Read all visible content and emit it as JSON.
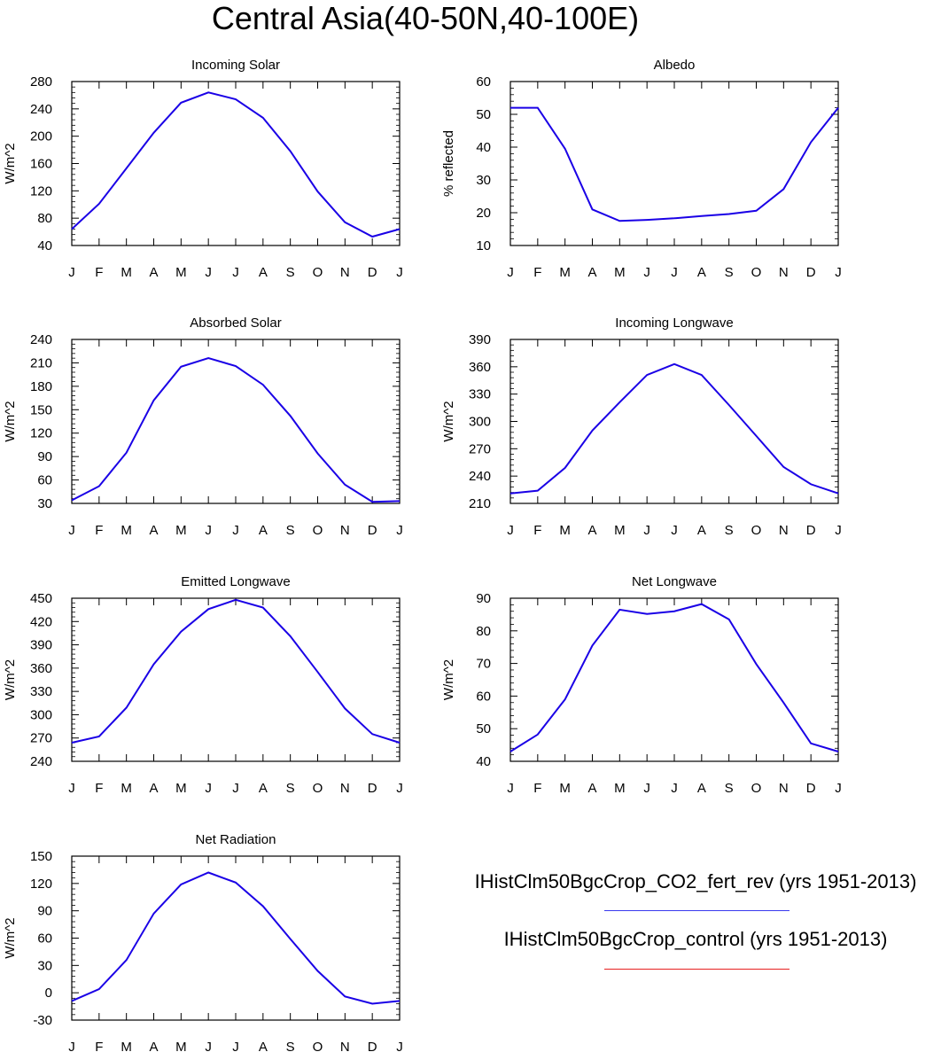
{
  "title": "Central Asia(40-50N,40-100E)",
  "months": [
    "J",
    "F",
    "M",
    "A",
    "M",
    "J",
    "J",
    "A",
    "S",
    "O",
    "N",
    "D",
    "J"
  ],
  "line_color": "#1a00e6",
  "legend": {
    "entries": [
      {
        "label": "IHistClm50BgcCrop_CO2_fert_rev (yrs 1951-2013)",
        "color": "#3a3aee"
      },
      {
        "label": "IHistClm50BgcCrop_control (yrs 1951-2013)",
        "color": "#e62020"
      }
    ]
  },
  "chart_data": [
    {
      "type": "line",
      "title": "Incoming Solar",
      "ylabel": "W/m^2",
      "ylim": [
        40,
        280
      ],
      "yticks": [
        40,
        80,
        120,
        160,
        200,
        240,
        280
      ],
      "values": [
        64,
        101,
        153,
        205,
        249,
        264,
        254,
        227,
        178,
        119,
        74,
        53,
        64
      ]
    },
    {
      "type": "line",
      "title": "Albedo",
      "ylabel": "% reflected",
      "ylim": [
        10,
        60
      ],
      "yticks": [
        10,
        20,
        30,
        40,
        50,
        60
      ],
      "values": [
        52,
        52,
        39.5,
        21,
        17.5,
        17.8,
        18.3,
        19,
        19.6,
        20.6,
        27.2,
        41.5,
        52
      ]
    },
    {
      "type": "line",
      "title": "Absorbed Solar",
      "ylabel": "W/m^2",
      "ylim": [
        30,
        240
      ],
      "yticks": [
        30,
        60,
        90,
        120,
        150,
        180,
        210,
        240
      ],
      "values": [
        34,
        52,
        95,
        162,
        205,
        216,
        206,
        182,
        142,
        94,
        54,
        32,
        33
      ]
    },
    {
      "type": "line",
      "title": "Incoming Longwave",
      "ylabel": "W/m^2",
      "ylim": [
        210,
        390
      ],
      "yticks": [
        210,
        240,
        270,
        300,
        330,
        360,
        390
      ],
      "values": [
        221,
        224,
        249,
        290,
        321,
        351,
        363,
        351,
        318,
        284,
        250,
        231,
        221
      ]
    },
    {
      "type": "line",
      "title": "Emitted Longwave",
      "ylabel": "W/m^2",
      "ylim": [
        240,
        450
      ],
      "yticks": [
        240,
        270,
        300,
        330,
        360,
        390,
        420,
        450
      ],
      "values": [
        264,
        272,
        309,
        365,
        407,
        436,
        448,
        438,
        401,
        355,
        308,
        275,
        264
      ]
    },
    {
      "type": "line",
      "title": "Net Longwave",
      "ylabel": "W/m^2",
      "ylim": [
        40,
        90
      ],
      "yticks": [
        40,
        50,
        60,
        70,
        80,
        90
      ],
      "values": [
        43,
        48.2,
        59,
        75.5,
        86.5,
        85.2,
        86,
        88.2,
        83.5,
        69.8,
        58,
        45.5,
        43
      ]
    },
    {
      "type": "line",
      "title": "Net Radiation",
      "ylabel": "W/m^2",
      "ylim": [
        -30,
        150
      ],
      "yticks": [
        -30,
        0,
        30,
        60,
        90,
        120,
        150
      ],
      "values": [
        -9,
        4,
        36,
        87,
        119,
        132,
        121,
        95,
        59,
        24,
        -4,
        -12,
        -9
      ]
    }
  ]
}
